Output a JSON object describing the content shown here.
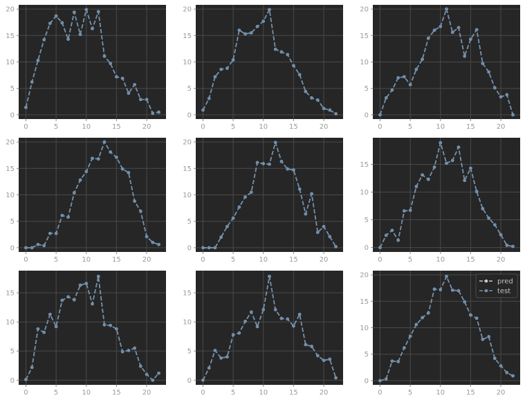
{
  "chart_data": [
    {
      "type": "line",
      "x": [
        0,
        1,
        2,
        3,
        4,
        5,
        6,
        7,
        8,
        9,
        10,
        11,
        12,
        13,
        14,
        15,
        16,
        17,
        18,
        19,
        20,
        21,
        22
      ],
      "ylim": [
        -0.8,
        20.8
      ],
      "xlim": [
        -1.2,
        23.2
      ],
      "yticks": [
        0,
        5,
        10,
        15,
        20
      ],
      "xticks": [
        0,
        5,
        10,
        15,
        20
      ],
      "grid": true,
      "series": [
        {
          "name": "pred",
          "values": [
            1.4,
            6.2,
            10.3,
            14.2,
            17.3,
            18.7,
            17.4,
            14.3,
            19.4,
            15.2,
            19.9,
            16.3,
            19.5,
            11.1,
            9.7,
            7.2,
            6.9,
            4.1,
            5.7,
            2.9,
            2.9,
            0.3,
            0.5
          ]
        },
        {
          "name": "test",
          "values": [
            1.4,
            6.2,
            10.3,
            14.2,
            17.3,
            18.7,
            17.4,
            14.3,
            19.4,
            15.2,
            19.9,
            16.3,
            19.5,
            11.1,
            9.7,
            7.2,
            6.9,
            4.1,
            5.7,
            2.9,
            2.9,
            0.3,
            0.5
          ]
        }
      ]
    },
    {
      "type": "line",
      "x": [
        0,
        1,
        2,
        3,
        4,
        5,
        6,
        7,
        8,
        9,
        10,
        11,
        12,
        13,
        14,
        15,
        16,
        17,
        18,
        19,
        20,
        21,
        22
      ],
      "ylim": [
        -0.8,
        20.8
      ],
      "xlim": [
        -1.2,
        23.2
      ],
      "yticks": [
        0,
        5,
        10,
        15,
        20
      ],
      "xticks": [
        0,
        5,
        10,
        15,
        20
      ],
      "grid": true,
      "series": [
        {
          "name": "pred",
          "values": [
            0.9,
            3.1,
            7.2,
            8.6,
            8.8,
            10.4,
            16.0,
            15.3,
            15.5,
            16.7,
            17.7,
            19.9,
            12.4,
            11.9,
            11.4,
            9.3,
            7.6,
            4.4,
            3.2,
            2.8,
            1.2,
            0.9,
            0.2
          ]
        },
        {
          "name": "test",
          "values": [
            0.9,
            3.1,
            7.2,
            8.6,
            8.8,
            10.4,
            16.0,
            15.3,
            15.5,
            16.7,
            17.7,
            19.9,
            12.4,
            11.9,
            11.4,
            9.3,
            7.6,
            4.4,
            3.2,
            2.8,
            1.2,
            0.9,
            0.2
          ]
        }
      ]
    },
    {
      "type": "line",
      "x": [
        0,
        1,
        2,
        3,
        4,
        5,
        6,
        7,
        8,
        9,
        10,
        11,
        12,
        13,
        14,
        15,
        16,
        17,
        18,
        19,
        20,
        21,
        22
      ],
      "ylim": [
        -0.8,
        20.8
      ],
      "xlim": [
        -1.2,
        23.2
      ],
      "yticks": [
        0,
        5,
        10,
        15,
        20
      ],
      "xticks": [
        0,
        5,
        10,
        15,
        20
      ],
      "grid": true,
      "series": [
        {
          "name": "pred",
          "values": [
            0.0,
            3.2,
            4.7,
            7.0,
            7.2,
            5.7,
            8.6,
            10.5,
            14.5,
            16.0,
            16.7,
            20.0,
            15.6,
            16.5,
            11.1,
            14.3,
            16.1,
            9.7,
            8.1,
            5.1,
            3.4,
            3.8,
            0.0
          ]
        },
        {
          "name": "test",
          "values": [
            0.0,
            3.2,
            4.7,
            7.0,
            7.2,
            5.7,
            8.6,
            10.5,
            14.5,
            16.0,
            16.7,
            20.0,
            15.6,
            16.5,
            11.1,
            14.3,
            16.1,
            9.7,
            8.1,
            5.1,
            3.4,
            3.8,
            0.0
          ]
        }
      ]
    },
    {
      "type": "line",
      "x": [
        0,
        1,
        2,
        3,
        4,
        5,
        6,
        7,
        8,
        9,
        10,
        11,
        12,
        13,
        14,
        15,
        16,
        17,
        18,
        19,
        20,
        21,
        22
      ],
      "ylim": [
        -0.8,
        20.8
      ],
      "xlim": [
        -1.2,
        23.2
      ],
      "yticks": [
        0,
        5,
        10,
        15,
        20
      ],
      "xticks": [
        0,
        5,
        10,
        15,
        20
      ],
      "grid": true,
      "series": [
        {
          "name": "pred",
          "values": [
            0.0,
            0.0,
            0.6,
            0.4,
            2.7,
            2.7,
            6.1,
            5.8,
            10.4,
            12.8,
            14.4,
            16.9,
            16.8,
            20.0,
            18.1,
            17.1,
            14.9,
            14.2,
            8.8,
            6.9,
            2.1,
            1.0,
            0.6
          ]
        },
        {
          "name": "test",
          "values": [
            0.0,
            0.0,
            0.6,
            0.4,
            2.7,
            2.7,
            6.1,
            5.8,
            10.4,
            12.8,
            14.4,
            16.9,
            16.8,
            20.0,
            18.1,
            17.1,
            14.9,
            14.2,
            8.8,
            6.9,
            2.1,
            1.0,
            0.6
          ]
        }
      ]
    },
    {
      "type": "line",
      "x": [
        0,
        1,
        2,
        3,
        4,
        5,
        6,
        7,
        8,
        9,
        10,
        11,
        12,
        13,
        14,
        15,
        16,
        17,
        18,
        19,
        20,
        21,
        22
      ],
      "ylim": [
        -0.8,
        20.8
      ],
      "xlim": [
        -1.2,
        23.2
      ],
      "yticks": [
        0,
        5,
        10,
        15,
        20
      ],
      "xticks": [
        0,
        5,
        10,
        15,
        20
      ],
      "grid": true,
      "series": [
        {
          "name": "pred",
          "values": [
            0.0,
            0.0,
            0.0,
            2.0,
            4.0,
            5.6,
            7.7,
            9.6,
            10.5,
            16.1,
            15.9,
            15.8,
            19.9,
            16.3,
            14.9,
            14.7,
            11.1,
            6.4,
            10.2,
            2.9,
            4.0,
            2.1,
            0.2
          ]
        },
        {
          "name": "test",
          "values": [
            0.0,
            0.0,
            0.0,
            2.0,
            4.0,
            5.6,
            7.7,
            9.6,
            10.5,
            16.1,
            15.9,
            15.8,
            19.9,
            16.3,
            14.9,
            14.7,
            11.1,
            6.4,
            10.2,
            2.9,
            4.0,
            2.1,
            0.2
          ]
        }
      ]
    },
    {
      "type": "line",
      "x": [
        0,
        1,
        2,
        3,
        4,
        5,
        6,
        7,
        8,
        9,
        10,
        11,
        12,
        13,
        14,
        15,
        16,
        17,
        18,
        19,
        20,
        21,
        22
      ],
      "ylim": [
        -0.8,
        19.8
      ],
      "xlim": [
        -1.2,
        23.2
      ],
      "yticks": [
        0,
        5,
        10,
        15
      ],
      "xticks": [
        0,
        5,
        10,
        15,
        20
      ],
      "grid": true,
      "series": [
        {
          "name": "pred",
          "values": [
            0.0,
            2.2,
            3.1,
            1.3,
            6.6,
            6.7,
            11.0,
            13.1,
            12.3,
            14.5,
            18.9,
            15.2,
            15.7,
            18.1,
            12.1,
            14.3,
            10.1,
            7.0,
            5.3,
            4.1,
            2.3,
            0.4,
            0.2
          ]
        },
        {
          "name": "test",
          "values": [
            0.0,
            2.2,
            3.1,
            1.3,
            6.6,
            6.7,
            11.0,
            13.1,
            12.3,
            14.5,
            18.9,
            15.2,
            15.7,
            18.1,
            12.1,
            14.3,
            10.1,
            7.0,
            5.3,
            4.1,
            2.3,
            0.4,
            0.2
          ]
        }
      ]
    },
    {
      "type": "line",
      "x": [
        0,
        1,
        2,
        3,
        4,
        5,
        6,
        7,
        8,
        9,
        10,
        11,
        12,
        13,
        14,
        15,
        16,
        17,
        18,
        19,
        20,
        21,
        22
      ],
      "ylim": [
        -0.8,
        18.8
      ],
      "xlim": [
        -1.2,
        23.2
      ],
      "yticks": [
        0,
        5,
        10,
        15
      ],
      "xticks": [
        0,
        5,
        10,
        15,
        20
      ],
      "grid": true,
      "series": [
        {
          "name": "pred",
          "values": [
            0.1,
            2.2,
            8.8,
            8.2,
            11.3,
            9.2,
            13.7,
            14.3,
            13.8,
            16.3,
            16.6,
            13.1,
            17.8,
            9.5,
            9.4,
            8.8,
            4.9,
            5.1,
            5.5,
            2.4,
            1.0,
            0.0,
            1.2
          ]
        },
        {
          "name": "test",
          "values": [
            0.1,
            2.2,
            8.8,
            8.2,
            11.3,
            9.2,
            13.7,
            14.3,
            13.8,
            16.3,
            16.6,
            13.1,
            17.8,
            9.5,
            9.4,
            8.8,
            4.9,
            5.1,
            5.5,
            2.4,
            1.0,
            0.0,
            1.2
          ]
        }
      ]
    },
    {
      "type": "line",
      "x": [
        0,
        1,
        2,
        3,
        4,
        5,
        6,
        7,
        8,
        9,
        10,
        11,
        12,
        13,
        14,
        15,
        16,
        17,
        18,
        19,
        20,
        21,
        22
      ],
      "ylim": [
        -0.8,
        18.8
      ],
      "xlim": [
        -1.2,
        23.2
      ],
      "yticks": [
        0,
        5,
        10,
        15
      ],
      "xticks": [
        0,
        5,
        10,
        15,
        20
      ],
      "grid": true,
      "series": [
        {
          "name": "pred",
          "values": [
            0.0,
            2.1,
            5.1,
            3.8,
            4.0,
            7.8,
            8.1,
            10.1,
            11.7,
            9.2,
            12.1,
            17.8,
            12.1,
            10.6,
            10.5,
            9.3,
            11.3,
            6.1,
            5.8,
            4.2,
            3.4,
            3.6,
            0.4
          ]
        },
        {
          "name": "test",
          "values": [
            0.0,
            2.1,
            5.1,
            3.8,
            4.0,
            7.8,
            8.1,
            10.1,
            11.7,
            9.2,
            12.1,
            17.8,
            12.1,
            10.6,
            10.5,
            9.3,
            11.3,
            6.1,
            5.8,
            4.2,
            3.4,
            3.6,
            0.4
          ]
        }
      ]
    },
    {
      "type": "line",
      "x": [
        0,
        1,
        2,
        3,
        4,
        5,
        6,
        7,
        8,
        9,
        10,
        11,
        12,
        13,
        14,
        15,
        16,
        17,
        18,
        19,
        20,
        21,
        22
      ],
      "ylim": [
        -0.8,
        20.8
      ],
      "xlim": [
        -1.2,
        23.2
      ],
      "yticks": [
        0,
        5,
        10,
        15,
        20
      ],
      "xticks": [
        0,
        5,
        10,
        15,
        20
      ],
      "grid": true,
      "legend": {
        "position": "top-right",
        "entries": [
          "pred",
          "test"
        ]
      },
      "series": [
        {
          "name": "pred",
          "values": [
            0.0,
            0.3,
            3.7,
            3.6,
            6.2,
            8.4,
            10.6,
            11.9,
            12.8,
            17.3,
            17.2,
            19.7,
            17.1,
            17.0,
            14.9,
            12.4,
            11.8,
            7.8,
            8.3,
            4.2,
            2.8,
            1.5,
            0.9
          ]
        },
        {
          "name": "test",
          "values": [
            0.0,
            0.3,
            3.7,
            3.6,
            6.2,
            8.4,
            10.6,
            11.9,
            12.8,
            17.3,
            17.2,
            19.7,
            17.1,
            17.0,
            14.9,
            12.4,
            11.8,
            7.8,
            8.3,
            4.2,
            2.8,
            1.5,
            0.9
          ]
        }
      ]
    }
  ],
  "colors": {
    "pred": "#c8c8c8",
    "test": "#6f8fad"
  }
}
